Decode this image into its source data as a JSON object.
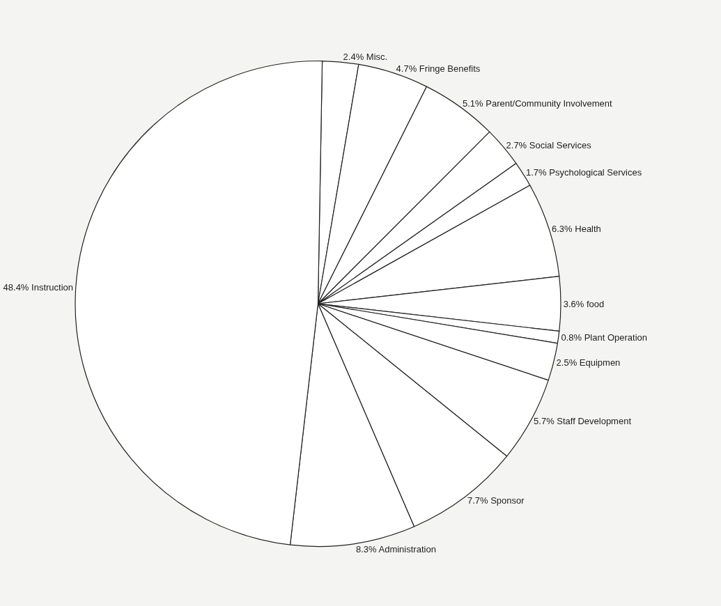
{
  "chart_data": {
    "type": "pie",
    "categories": [
      "Misc.",
      "Fringe Benefits",
      "Parent/Community Involvement",
      "Social Services",
      "Psychological Services",
      "Health",
      "food",
      "Plant Operation",
      "Equipmen",
      "Staff Development",
      "Sponsor",
      "Administration",
      "Instruction"
    ],
    "values": [
      2.4,
      4.7,
      5.1,
      2.7,
      1.7,
      6.3,
      3.6,
      0.8,
      2.5,
      5.7,
      7.7,
      8.3,
      48.4
    ],
    "value_labels": [
      "2.4%",
      "4.7%",
      "5.1%",
      "2.7%",
      "1.7%",
      "6.3%",
      "3.6%",
      "0.8%",
      "2.5%",
      "5.7%",
      "7.7%",
      "8.3%",
      "48.4%"
    ],
    "colors": [
      "#ffffff",
      "#ffffff",
      "#ffffff",
      "#ffffff",
      "#ffffff",
      "#ffffff",
      "#ffffff",
      "#ffffff",
      "#ffffff",
      "#ffffff",
      "#ffffff",
      "#ffffff",
      "#ffffff"
    ],
    "legend": false
  }
}
